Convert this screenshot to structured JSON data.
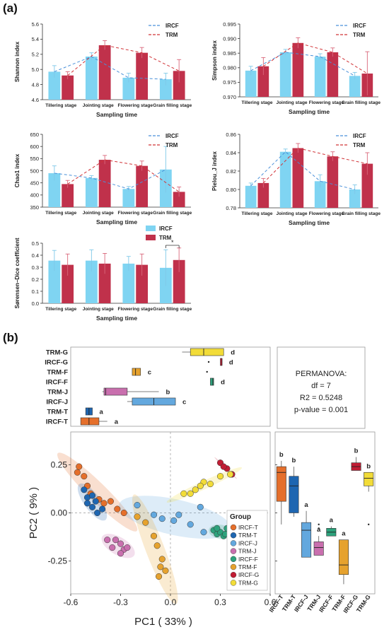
{
  "panels": {
    "a": "(a)",
    "b": "(b)"
  },
  "colors": {
    "ircf": "#7fd4f2",
    "trm": "#c0314b",
    "ircf_line": "#4a90d9",
    "trm_line": "#d13438"
  },
  "chart_data": [
    {
      "type": "bar",
      "title": "",
      "xlabel": "Sampling time",
      "ylabel": "Shannon index",
      "categories": [
        "Tillering stage",
        "Jointing stage",
        "Flowering stage",
        "Grain filling stage"
      ],
      "ylim": [
        4.6,
        5.6
      ],
      "yticks": [
        "4.6",
        "4.8",
        "5.0",
        "5.2",
        "5.4",
        "5.6"
      ],
      "ytick_values": [
        4.6,
        4.8,
        5.0,
        5.2,
        5.4,
        5.6
      ],
      "legend": "top-right",
      "series": [
        {
          "name": "IRCF",
          "values": [
            4.97,
            5.17,
            4.89,
            4.87
          ],
          "err": [
            0.08,
            0.05,
            0.06,
            0.08
          ]
        },
        {
          "name": "TRM",
          "values": [
            4.92,
            5.32,
            5.22,
            4.98
          ],
          "err": [
            0.05,
            0.06,
            0.07,
            0.15
          ]
        }
      ]
    },
    {
      "type": "bar",
      "title": "",
      "xlabel": "Sampling time",
      "ylabel": "Simpson index",
      "categories": [
        "Tillering stage",
        "Jointing stage",
        "Flowering stage",
        "Grain filling stage"
      ],
      "ylim": [
        0.97,
        0.995
      ],
      "yticks": [
        "0.970",
        "0.975",
        "0.980",
        "0.985",
        "0.990",
        "0.995"
      ],
      "ytick_values": [
        0.97,
        0.975,
        0.98,
        0.985,
        0.99,
        0.995
      ],
      "legend": "top-right",
      "series": [
        {
          "name": "IRCF",
          "values": [
            0.979,
            0.9853,
            0.9838,
            0.9772
          ],
          "err": [
            0.0015,
            0.001,
            0.001,
            0.0012
          ]
        },
        {
          "name": "TRM",
          "values": [
            0.9805,
            0.9885,
            0.9853,
            0.978
          ],
          "err": [
            0.003,
            0.0018,
            0.0015,
            0.0075
          ]
        }
      ]
    },
    {
      "type": "bar",
      "title": "",
      "xlabel": "Sampling time",
      "ylabel": "Chao1 index",
      "categories": [
        "Tillering stage",
        "Jointing stage",
        "Flowering stage",
        "Grain filling stage"
      ],
      "ylim": [
        350,
        650
      ],
      "yticks": [
        "350",
        "400",
        "450",
        "500",
        "550",
        "600",
        "650"
      ],
      "ytick_values": [
        350,
        400,
        450,
        500,
        550,
        600,
        650
      ],
      "legend": "top-right",
      "series": [
        {
          "name": "IRCF",
          "values": [
            490,
            470,
            425,
            505
          ],
          "err": [
            30,
            10,
            10,
            95
          ]
        },
        {
          "name": "TRM",
          "values": [
            445,
            545,
            520,
            413
          ],
          "err": [
            15,
            18,
            20,
            20
          ]
        }
      ]
    },
    {
      "type": "bar",
      "title": "",
      "xlabel": "Sampling time",
      "ylabel": "Pielou_J index",
      "categories": [
        "Tillering stage",
        "Jointing stage",
        "Flowering stage",
        "Grain filling stage"
      ],
      "ylim": [
        0.78,
        0.86
      ],
      "yticks": [
        "0.78",
        "0.80",
        "0.82",
        "0.84",
        "0.86"
      ],
      "ytick_values": [
        0.78,
        0.8,
        0.82,
        0.84,
        0.86
      ],
      "legend": "top-right",
      "series": [
        {
          "name": "IRCF",
          "values": [
            0.804,
            0.841,
            0.809,
            0.8
          ],
          "err": [
            0.003,
            0.003,
            0.007,
            0.005
          ]
        },
        {
          "name": "TRM",
          "values": [
            0.807,
            0.845,
            0.836,
            0.828
          ],
          "err": [
            0.005,
            0.005,
            0.005,
            0.012
          ]
        }
      ]
    },
    {
      "type": "bar",
      "title": "",
      "xlabel": "Sampling time",
      "ylabel": "Sørensen–Dice coefficient",
      "categories": [
        "Tillering stage",
        "Jointing stage",
        "Flowering stage",
        "Grain filling stage"
      ],
      "ylim": [
        0.0,
        0.5
      ],
      "yticks": [
        "0.0",
        "0.1",
        "0.2",
        "0.3",
        "0.4",
        "0.5"
      ],
      "ytick_values": [
        0.0,
        0.1,
        0.2,
        0.3,
        0.4,
        0.5
      ],
      "legend": "top-right",
      "annotation": "*",
      "series": [
        {
          "name": "IRCF",
          "values": [
            0.355,
            0.355,
            0.33,
            0.295
          ],
          "err": [
            0.085,
            0.09,
            0.06,
            0.15
          ]
        },
        {
          "name": "TRM",
          "values": [
            0.32,
            0.33,
            0.32,
            0.36
          ],
          "err": [
            0.09,
            0.085,
            0.09,
            0.1
          ]
        }
      ]
    },
    {
      "type": "box",
      "title": "",
      "orientation": "horizontal",
      "categories": [
        "TRM-G",
        "IRCF-G",
        "TRM-F",
        "IRCF-F",
        "TRM-J",
        "IRCF-J",
        "TRM-T",
        "IRCF-T"
      ],
      "letters": [
        "d",
        "d",
        "c",
        "d",
        "b",
        "c",
        "a",
        "a"
      ],
      "xlim": [
        -0.6,
        0.6
      ],
      "boxes": [
        {
          "q1": 0.12,
          "median": 0.2,
          "q3": 0.32,
          "lo": 0.07,
          "hi": 0.32,
          "out": []
        },
        {
          "q1": 0.3,
          "median": 0.31,
          "q3": 0.31,
          "lo": 0.3,
          "hi": 0.31,
          "out": [
            0.23
          ]
        },
        {
          "q1": -0.23,
          "median": -0.21,
          "q3": -0.18,
          "lo": -0.23,
          "hi": -0.18,
          "out": [
            0.22
          ]
        },
        {
          "q1": 0.24,
          "median": 0.255,
          "q3": 0.26,
          "lo": 0.24,
          "hi": 0.26,
          "out": []
        },
        {
          "q1": -0.4,
          "median": -0.39,
          "q3": -0.26,
          "lo": -0.41,
          "hi": -0.07,
          "out": []
        },
        {
          "q1": -0.23,
          "median": -0.1,
          "q3": 0.03,
          "lo": -0.26,
          "hi": 0.03,
          "out": []
        },
        {
          "q1": -0.51,
          "median": -0.49,
          "q3": -0.47,
          "lo": -0.51,
          "hi": -0.47,
          "out": []
        },
        {
          "q1": -0.54,
          "median": -0.49,
          "q3": -0.43,
          "lo": -0.54,
          "hi": -0.38,
          "out": []
        }
      ]
    },
    {
      "type": "scatter",
      "title": "",
      "xlabel": "PC1 ( 33% )",
      "ylabel": "PC2 ( 9% )",
      "xlim": [
        -0.6,
        0.6
      ],
      "ylim": [
        -0.42,
        0.42
      ],
      "xticks": [
        "-0.6",
        "-0.3",
        "0.0",
        "0.3",
        "0.6"
      ],
      "xtick_values": [
        -0.6,
        -0.3,
        0.0,
        0.3,
        0.6
      ],
      "yticks": [
        "0.25",
        "0.00",
        "-0.25"
      ],
      "ytick_values": [
        0.25,
        0.0,
        -0.25
      ],
      "legend_title": "Group",
      "legend": "bottom-right",
      "series": [
        {
          "name": "IRCF-T",
          "color": "#e56f2b",
          "points": [
            [
              -0.56,
              0.21
            ],
            [
              -0.52,
              0.19
            ],
            [
              -0.5,
              0.14
            ],
            [
              -0.48,
              0.1
            ],
            [
              -0.43,
              0.07
            ],
            [
              -0.4,
              0.05
            ],
            [
              -0.36,
              0.06
            ],
            [
              -0.32,
              0.02
            ],
            [
              -0.28,
              0.0
            ],
            [
              -0.55,
              0.24
            ]
          ]
        },
        {
          "name": "TRM-T",
          "color": "#1e66b1",
          "points": [
            [
              -0.52,
              0.12
            ],
            [
              -0.5,
              0.08
            ],
            [
              -0.47,
              0.03
            ],
            [
              -0.44,
              0.0
            ],
            [
              -0.41,
              0.02
            ],
            [
              -0.47,
              0.09
            ],
            [
              -0.45,
              0.06
            ],
            [
              -0.5,
              0.05
            ]
          ]
        },
        {
          "name": "IRCF-J",
          "color": "#63a8de",
          "points": [
            [
              -0.2,
              0.04
            ],
            [
              -0.1,
              -0.01
            ],
            [
              -0.05,
              -0.03
            ],
            [
              0.02,
              -0.04
            ],
            [
              0.05,
              -0.01
            ],
            [
              0.12,
              -0.06
            ],
            [
              0.18,
              0.03
            ],
            [
              0.2,
              -0.1
            ]
          ]
        },
        {
          "name": "TRM-J",
          "color": "#c96fae",
          "points": [
            [
              -0.38,
              -0.14
            ],
            [
              -0.35,
              -0.18
            ],
            [
              -0.3,
              -0.16
            ],
            [
              -0.28,
              -0.19
            ],
            [
              -0.33,
              -0.14
            ],
            [
              -0.26,
              -0.18
            ],
            [
              -0.3,
              -0.21
            ]
          ]
        },
        {
          "name": "IRCF-F",
          "color": "#2da27c",
          "points": [
            [
              0.26,
              -0.09
            ],
            [
              0.28,
              -0.11
            ],
            [
              0.3,
              -0.1
            ],
            [
              0.32,
              -0.12
            ],
            [
              0.34,
              -0.08
            ],
            [
              0.28,
              -0.08
            ],
            [
              0.33,
              -0.11
            ]
          ]
        },
        {
          "name": "TRM-F",
          "color": "#e6a22e",
          "points": [
            [
              -0.2,
              -0.02
            ],
            [
              -0.15,
              -0.05
            ],
            [
              -0.1,
              -0.12
            ],
            [
              -0.08,
              -0.17
            ],
            [
              -0.05,
              -0.24
            ],
            [
              -0.06,
              -0.28
            ],
            [
              -0.03,
              -0.3
            ],
            [
              -0.07,
              -0.33
            ]
          ]
        },
        {
          "name": "IRCF-G",
          "color": "#c11d35",
          "points": [
            [
              0.3,
              0.26
            ],
            [
              0.34,
              0.23
            ],
            [
              0.37,
              0.2
            ],
            [
              0.32,
              0.24
            ]
          ]
        },
        {
          "name": "TRM-G",
          "color": "#f2dc38",
          "points": [
            [
              0.08,
              0.1
            ],
            [
              0.15,
              0.12
            ],
            [
              0.2,
              0.16
            ],
            [
              0.24,
              0.15
            ],
            [
              0.3,
              0.19
            ],
            [
              0.36,
              0.2
            ],
            [
              0.12,
              0.1
            ],
            [
              0.18,
              0.14
            ]
          ]
        }
      ]
    },
    {
      "type": "box",
      "title": "",
      "orientation": "vertical",
      "categories": [
        "IRCF-T",
        "TRM-T",
        "IRCF-J",
        "TRM-J",
        "IRCF-F",
        "TRM-F",
        "IRCF-G",
        "TRM-G"
      ],
      "letters": [
        "b",
        "b",
        "a",
        "a",
        "a",
        "a",
        "b",
        "b"
      ],
      "ylim": [
        -0.42,
        0.42
      ],
      "boxes": [
        {
          "q1": 0.06,
          "median": 0.21,
          "q3": 0.24,
          "lo": -0.06,
          "hi": 0.27,
          "out": []
        },
        {
          "q1": 0.0,
          "median": 0.14,
          "q3": 0.19,
          "lo": -0.02,
          "hi": 0.24,
          "out": []
        },
        {
          "q1": -0.23,
          "median": -0.09,
          "q3": -0.05,
          "lo": -0.23,
          "hi": 0.01,
          "out": []
        },
        {
          "q1": -0.22,
          "median": -0.18,
          "q3": -0.15,
          "lo": -0.22,
          "hi": -0.12,
          "out": [
            -0.08,
            -0.06
          ]
        },
        {
          "q1": -0.12,
          "median": -0.1,
          "q3": -0.08,
          "lo": -0.12,
          "hi": -0.07,
          "out": []
        },
        {
          "q1": -0.32,
          "median": -0.27,
          "q3": -0.14,
          "lo": -0.37,
          "hi": -0.14,
          "out": []
        },
        {
          "q1": 0.22,
          "median": 0.24,
          "q3": 0.26,
          "lo": 0.22,
          "hi": 0.29,
          "out": []
        },
        {
          "q1": 0.14,
          "median": 0.18,
          "q3": 0.21,
          "lo": 0.11,
          "hi": 0.21,
          "out": [
            -0.06
          ]
        }
      ]
    }
  ],
  "permanova": {
    "title": "PERMANOVA:",
    "df": "df = 7",
    "r2": "R2 = 0.5248",
    "p": "p-value = 0.001"
  }
}
